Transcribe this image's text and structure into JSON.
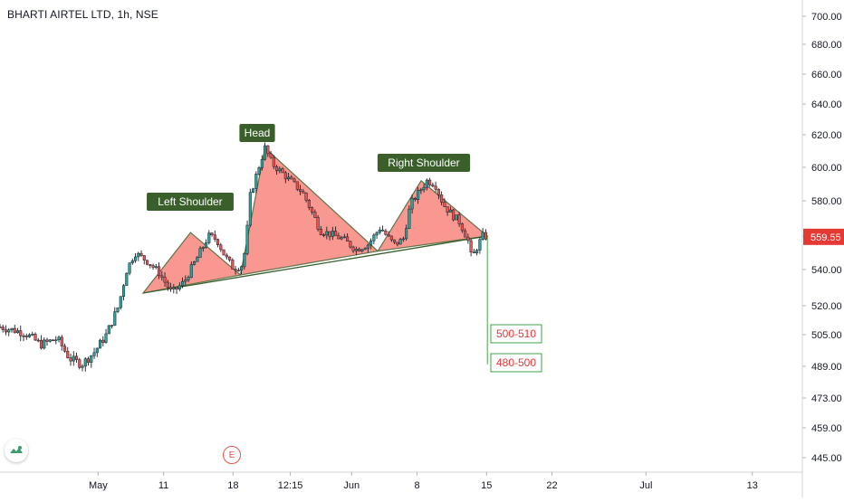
{
  "header": {
    "symbol_title": "BHARTI AIRTEL LTD, 1h, NSE"
  },
  "colors": {
    "up_candle": "#26a69a",
    "down_candle": "#ef5350",
    "pattern_fill": "#f44336",
    "label_bg": "#3a5f2b",
    "price_tag": "#e53935",
    "target_text": "#e53935",
    "target_border": "#43a047"
  },
  "icons": {
    "logo": "tradingview-logo-icon",
    "earnings": "earnings-marker-icon"
  },
  "chart_data": {
    "type": "candlestick",
    "title": "BHARTI AIRTEL LTD, 1h, NSE",
    "y_ticks": [
      "700.00",
      "680.00",
      "660.00",
      "640.00",
      "620.00",
      "600.00",
      "580.00",
      "560.00",
      "540.00",
      "520.00",
      "505.00",
      "489.00",
      "473.00",
      "459.00",
      "445.00"
    ],
    "x_ticks": [
      "May",
      "11",
      "18",
      "12:15",
      "Jun",
      "8",
      "15",
      "22",
      "Jul",
      "13"
    ],
    "last_price": "559.55",
    "earnings_marker": "E",
    "annotations": {
      "left_shoulder": "Left Shoulder",
      "head": "Head",
      "right_shoulder": "Right Shoulder",
      "target_1": "500-510",
      "target_2": "480-500"
    },
    "price_path": [
      [
        0,
        509
      ],
      [
        3,
        506
      ],
      [
        5,
        500
      ],
      [
        7,
        503
      ],
      [
        8.5,
        493
      ],
      [
        10,
        490
      ],
      [
        11.5,
        496
      ],
      [
        13,
        505
      ],
      [
        14.5,
        520
      ],
      [
        15.5,
        540
      ],
      [
        16.5,
        550
      ],
      [
        18,
        545
      ],
      [
        19.5,
        538
      ],
      [
        21,
        527
      ],
      [
        22.5,
        533
      ],
      [
        24,
        546
      ],
      [
        25.5,
        560
      ],
      [
        26.5,
        558
      ],
      [
        27.5,
        548
      ],
      [
        28.5,
        541
      ],
      [
        29.5,
        542
      ],
      [
        30,
        552
      ],
      [
        30.6,
        583
      ],
      [
        31.5,
        598
      ],
      [
        32.4,
        612
      ],
      [
        33.3,
        602
      ],
      [
        34.2,
        598
      ],
      [
        35.5,
        592
      ],
      [
        37,
        585
      ],
      [
        38,
        575
      ],
      [
        39.2,
        563
      ],
      [
        40.5,
        561
      ],
      [
        42,
        558
      ],
      [
        43.5,
        552
      ],
      [
        45,
        555
      ],
      [
        46.5,
        565
      ],
      [
        47.3,
        560
      ],
      [
        48.2,
        555
      ],
      [
        49.3,
        558
      ],
      [
        50.2,
        578
      ],
      [
        51.2,
        585
      ],
      [
        52.2,
        592
      ],
      [
        53.2,
        590
      ],
      [
        54.2,
        578
      ],
      [
        55.3,
        572
      ],
      [
        56.2,
        568
      ],
      [
        57.2,
        558
      ],
      [
        57.7,
        546
      ],
      [
        58.2,
        552
      ],
      [
        59,
        560
      ],
      [
        59.6,
        559.55
      ]
    ],
    "pattern": {
      "neckline": [
        [
          17.5,
          527
        ],
        [
          59.6,
          560
        ]
      ],
      "left_shoulder": [
        [
          17.5,
          527
        ],
        [
          23.3,
          562
        ],
        [
          29.4,
          537
        ]
      ],
      "head": [
        [
          29.4,
          537
        ],
        [
          32.4,
          612
        ],
        [
          46.2,
          551
        ]
      ],
      "right_shoulder": [
        [
          46.2,
          551
        ],
        [
          51.5,
          592
        ],
        [
          59.6,
          560
        ]
      ]
    },
    "projection_line": [
      [
        59.6,
        560
      ],
      [
        59.6,
        490
      ]
    ]
  }
}
